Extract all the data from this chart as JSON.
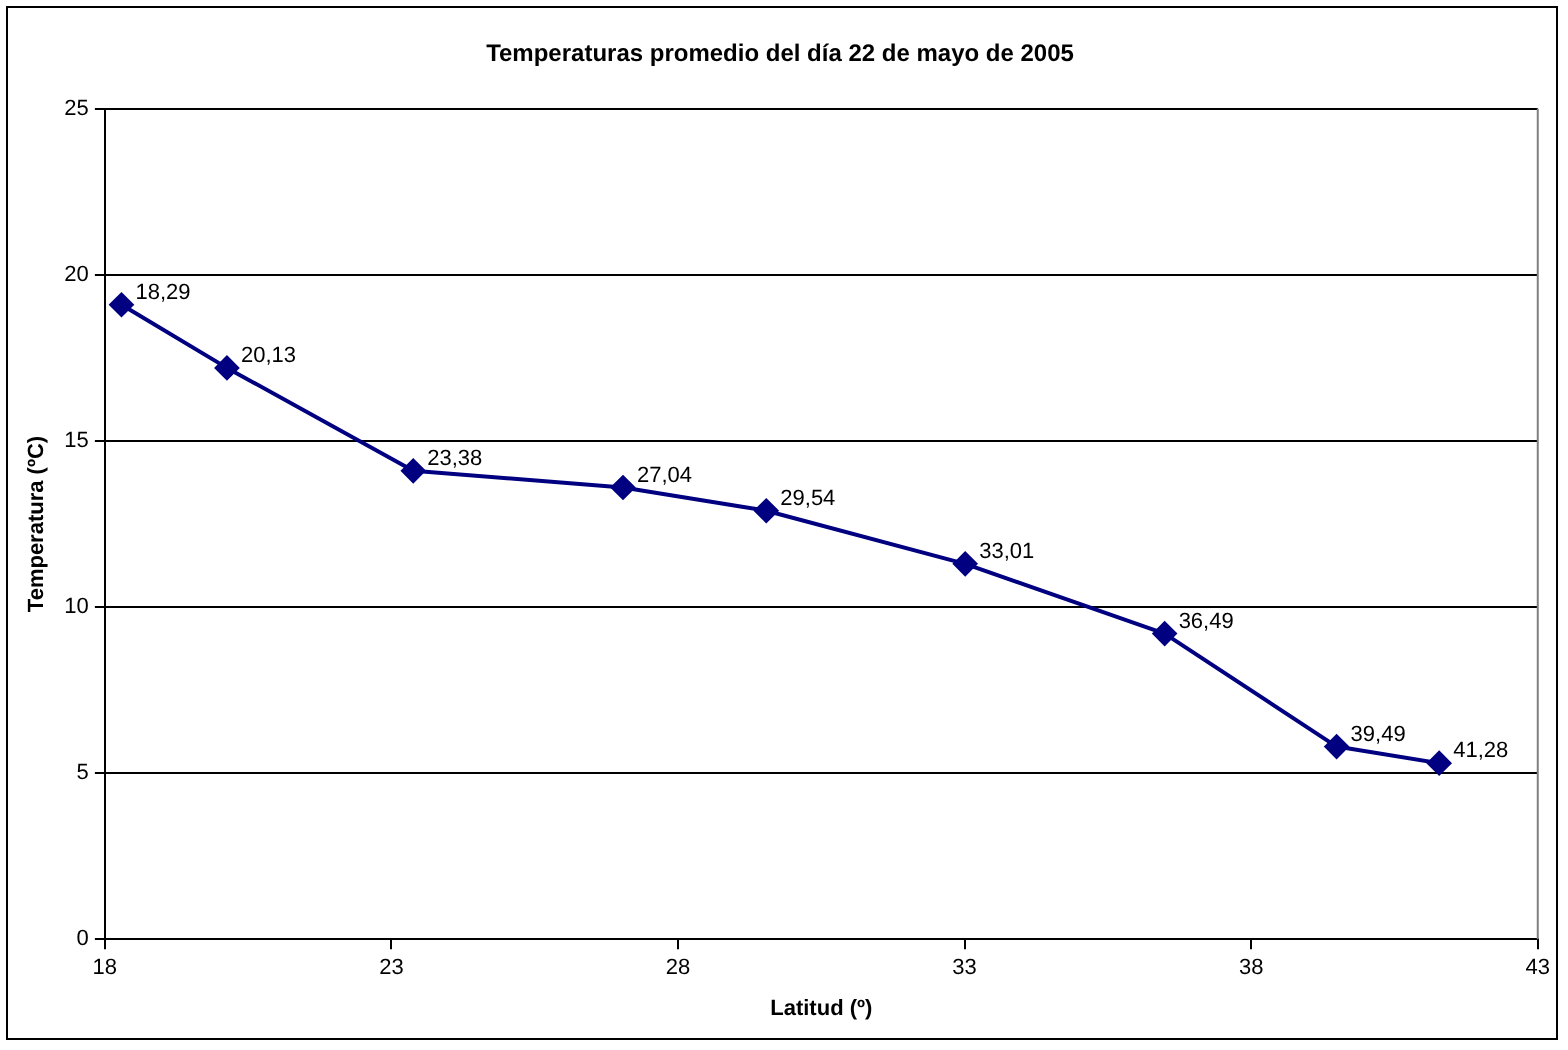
{
  "chart_data": {
    "type": "line",
    "title": "Temperaturas promedio del día 22 de mayo de 2005",
    "xlabel": "Latitud (º)",
    "ylabel": "Temperatura (ºC)",
    "x": [
      18.29,
      20.13,
      23.38,
      27.04,
      29.54,
      33.01,
      36.49,
      39.49,
      41.28
    ],
    "series": [
      {
        "color": "#000080",
        "values": [
          19.1,
          17.2,
          14.1,
          13.6,
          12.9,
          11.3,
          9.2,
          5.8,
          5.3
        ]
      }
    ],
    "annotations": [
      {
        "text": "18,29",
        "x": 18.29,
        "y": 19.1
      },
      {
        "text": "20,13",
        "x": 20.13,
        "y": 17.2
      },
      {
        "text": "23,38",
        "x": 23.38,
        "y": 14.1
      },
      {
        "text": "27,04",
        "x": 27.04,
        "y": 13.6
      },
      {
        "text": "29,54",
        "x": 29.54,
        "y": 12.9
      },
      {
        "text": "33,01",
        "x": 33.01,
        "y": 11.3
      },
      {
        "text": "36,49",
        "x": 36.49,
        "y": 9.2
      },
      {
        "text": "39,49",
        "x": 39.49,
        "y": 5.8
      },
      {
        "text": "41,28",
        "x": 41.28,
        "y": 5.3
      }
    ],
    "xlim": [
      18,
      43
    ],
    "xticks": [
      18,
      23,
      28,
      33,
      38,
      43
    ],
    "ylim": [
      0,
      25
    ],
    "yticks": [
      0,
      5,
      10,
      15,
      20,
      25
    ],
    "grid": "y",
    "legend": false,
    "marker": "diamond",
    "line_style": "solid"
  }
}
